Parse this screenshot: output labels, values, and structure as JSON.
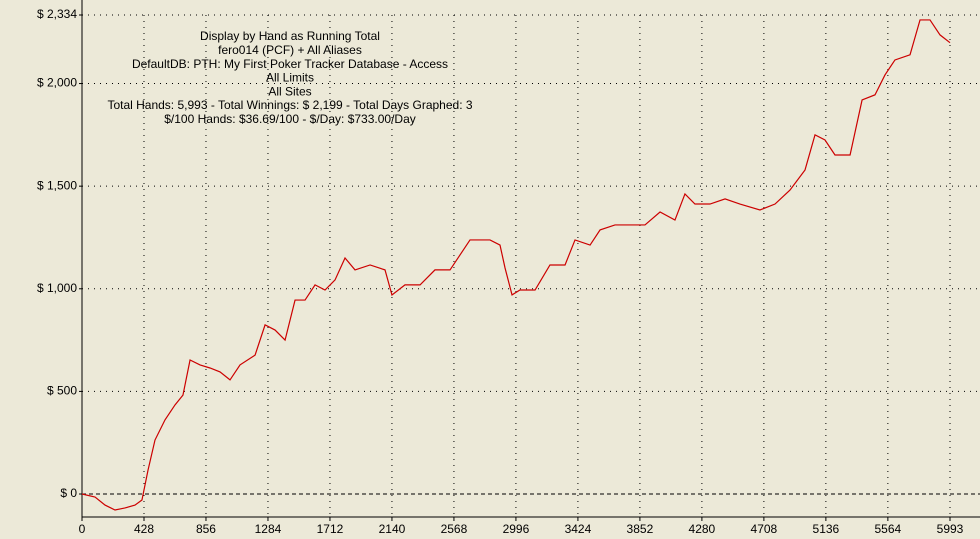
{
  "chart_data": {
    "type": "line",
    "annotation_lines": [
      "Display by Hand as Running Total",
      "fero014 (PCF) + All Aliases",
      "DefaultDB: PTH: My First Poker Tracker Database - Access",
      "All Limits",
      "All Sites",
      "Total Hands: 5,993 - Total Winnings: $ 2,199 - Total Days Graphed: 3",
      "$/100 Hands: $36.69/100 - $/Day: $733.00/Day"
    ],
    "x": [
      0,
      90,
      159,
      228,
      297,
      366,
      414,
      456,
      504,
      573,
      642,
      697,
      746,
      815,
      884,
      953,
      1022,
      1091,
      1195,
      1264,
      1333,
      1402,
      1471,
      1540,
      1609,
      1678,
      1747,
      1816,
      1885,
      1989,
      2092,
      2140,
      2230,
      2334,
      2437,
      2541,
      2610,
      2679,
      2748,
      2817,
      2886,
      2921,
      2969,
      3024,
      3128,
      3231,
      3335,
      3404,
      3508,
      3577,
      3680,
      3784,
      3887,
      3991,
      4094,
      4163,
      4232,
      4336,
      4440,
      4543,
      4681,
      4785,
      4888,
      4992,
      5061,
      5130,
      5199,
      5303,
      5386,
      5475,
      5544,
      5613,
      5717,
      5786,
      5855,
      5924,
      5993
    ],
    "values": [
      0,
      -15,
      -54,
      -78,
      -68,
      -54,
      -29,
      117,
      263,
      361,
      434,
      482,
      653,
      629,
      614,
      595,
      556,
      629,
      677,
      824,
      799,
      750,
      945,
      945,
      1019,
      994,
      1043,
      1150,
      1092,
      1116,
      1092,
      970,
      1019,
      1019,
      1092,
      1092,
      1165,
      1238,
      1238,
      1238,
      1213,
      1101,
      970,
      994,
      994,
      1116,
      1116,
      1238,
      1213,
      1287,
      1311,
      1311,
      1311,
      1374,
      1335,
      1462,
      1413,
      1413,
      1438,
      1413,
      1384,
      1413,
      1481,
      1579,
      1750,
      1725,
      1652,
      1652,
      1920,
      1945,
      2042,
      2115,
      2140,
      2310,
      2310,
      2237,
      2199
    ],
    "color": "#cc0000",
    "xlim": [
      0,
      5993
    ],
    "ylim": [
      -112,
      2334
    ],
    "xticks": [
      0,
      428,
      856,
      1284,
      1712,
      2140,
      2568,
      2996,
      3424,
      3852,
      4280,
      4708,
      5136,
      5564,
      5993
    ],
    "yticks": [
      {
        "value": 0,
        "label": "$ 0"
      },
      {
        "value": 500,
        "label": "$ 500"
      },
      {
        "value": 1000,
        "label": "$ 1,000"
      },
      {
        "value": 1500,
        "label": "$ 1,500"
      },
      {
        "value": 2000,
        "label": "$ 2,000"
      },
      {
        "value": 2334,
        "label": "$ 2,334"
      }
    ],
    "grid": true
  }
}
